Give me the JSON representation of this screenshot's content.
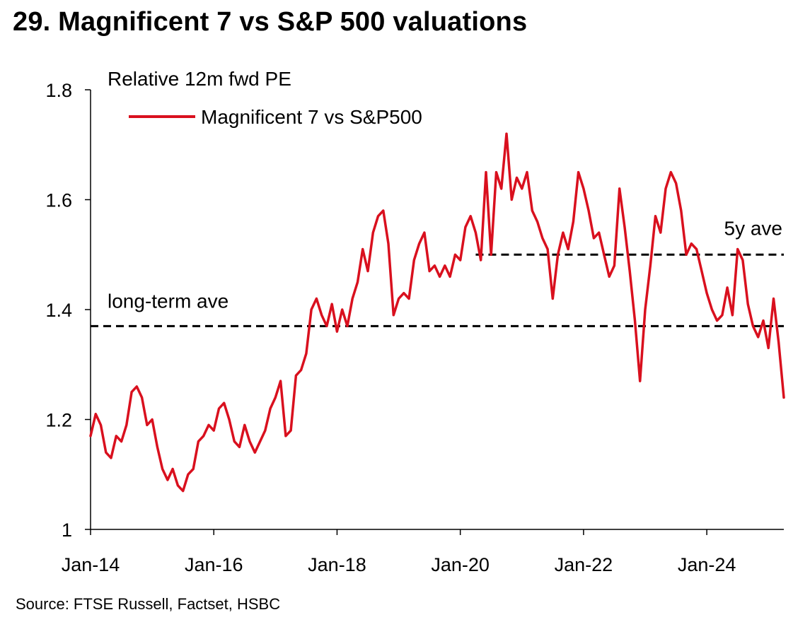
{
  "title": "29. Magnificent 7 vs S&P 500 valuations",
  "source": "Source: FTSE Russell, Factset, HSBC",
  "colors": {
    "series": "#d9101e",
    "reference": "#000000",
    "axis": "#000000"
  },
  "chart_data": {
    "type": "line",
    "subtitle": "Relative 12m fwd PE",
    "ylim": [
      1.0,
      1.8
    ],
    "yticks": [
      1.0,
      1.2,
      1.4,
      1.6,
      1.8
    ],
    "ytick_labels": [
      "1",
      "1.2",
      "1.4",
      "1.6",
      "1.8"
    ],
    "xlim": [
      "2014-01",
      "2025-04"
    ],
    "xticks": [
      "2014-01",
      "2016-01",
      "2018-01",
      "2020-01",
      "2022-01",
      "2024-01"
    ],
    "xtick_labels": [
      "Jan-14",
      "Jan-16",
      "Jan-18",
      "Jan-20",
      "Jan-22",
      "Jan-24"
    ],
    "legend_position": "top-left",
    "grid": false,
    "series": [
      {
        "name": "Magnificent 7 vs S&P500",
        "x": [
          "2014-01",
          "2014-02",
          "2014-03",
          "2014-04",
          "2014-05",
          "2014-06",
          "2014-07",
          "2014-08",
          "2014-09",
          "2014-10",
          "2014-11",
          "2014-12",
          "2015-01",
          "2015-02",
          "2015-03",
          "2015-04",
          "2015-05",
          "2015-06",
          "2015-07",
          "2015-08",
          "2015-09",
          "2015-10",
          "2015-11",
          "2015-12",
          "2016-01",
          "2016-02",
          "2016-03",
          "2016-04",
          "2016-05",
          "2016-06",
          "2016-07",
          "2016-08",
          "2016-09",
          "2016-10",
          "2016-11",
          "2016-12",
          "2017-01",
          "2017-02",
          "2017-03",
          "2017-04",
          "2017-05",
          "2017-06",
          "2017-07",
          "2017-08",
          "2017-09",
          "2017-10",
          "2017-11",
          "2017-12",
          "2018-01",
          "2018-02",
          "2018-03",
          "2018-04",
          "2018-05",
          "2018-06",
          "2018-07",
          "2018-08",
          "2018-09",
          "2018-10",
          "2018-11",
          "2018-12",
          "2019-01",
          "2019-02",
          "2019-03",
          "2019-04",
          "2019-05",
          "2019-06",
          "2019-07",
          "2019-08",
          "2019-09",
          "2019-10",
          "2019-11",
          "2019-12",
          "2020-01",
          "2020-02",
          "2020-03",
          "2020-04",
          "2020-05",
          "2020-06",
          "2020-07",
          "2020-08",
          "2020-09",
          "2020-10",
          "2020-11",
          "2020-12",
          "2021-01",
          "2021-02",
          "2021-03",
          "2021-04",
          "2021-05",
          "2021-06",
          "2021-07",
          "2021-08",
          "2021-09",
          "2021-10",
          "2021-11",
          "2021-12",
          "2022-01",
          "2022-02",
          "2022-03",
          "2022-04",
          "2022-05",
          "2022-06",
          "2022-07",
          "2022-08",
          "2022-09",
          "2022-10",
          "2022-11",
          "2022-12",
          "2023-01",
          "2023-02",
          "2023-03",
          "2023-04",
          "2023-05",
          "2023-06",
          "2023-07",
          "2023-08",
          "2023-09",
          "2023-10",
          "2023-11",
          "2023-12",
          "2024-01",
          "2024-02",
          "2024-03",
          "2024-04",
          "2024-05",
          "2024-06",
          "2024-07",
          "2024-08",
          "2024-09",
          "2024-10",
          "2024-11",
          "2024-12",
          "2025-01",
          "2025-02",
          "2025-03",
          "2025-04"
        ],
        "values": [
          1.17,
          1.21,
          1.19,
          1.14,
          1.13,
          1.17,
          1.16,
          1.19,
          1.25,
          1.26,
          1.24,
          1.19,
          1.2,
          1.15,
          1.11,
          1.09,
          1.11,
          1.08,
          1.07,
          1.1,
          1.11,
          1.16,
          1.17,
          1.19,
          1.18,
          1.22,
          1.23,
          1.2,
          1.16,
          1.15,
          1.19,
          1.16,
          1.14,
          1.16,
          1.18,
          1.22,
          1.24,
          1.27,
          1.17,
          1.18,
          1.28,
          1.29,
          1.32,
          1.4,
          1.42,
          1.39,
          1.37,
          1.41,
          1.36,
          1.4,
          1.37,
          1.42,
          1.45,
          1.51,
          1.47,
          1.54,
          1.57,
          1.58,
          1.52,
          1.39,
          1.42,
          1.43,
          1.42,
          1.49,
          1.52,
          1.54,
          1.47,
          1.48,
          1.46,
          1.48,
          1.46,
          1.5,
          1.49,
          1.55,
          1.57,
          1.54,
          1.49,
          1.65,
          1.5,
          1.65,
          1.62,
          1.72,
          1.6,
          1.64,
          1.62,
          1.65,
          1.58,
          1.56,
          1.53,
          1.51,
          1.42,
          1.5,
          1.54,
          1.51,
          1.56,
          1.65,
          1.62,
          1.58,
          1.53,
          1.54,
          1.5,
          1.46,
          1.48,
          1.62,
          1.55,
          1.47,
          1.38,
          1.27,
          1.4,
          1.48,
          1.57,
          1.54,
          1.62,
          1.65,
          1.63,
          1.58,
          1.5,
          1.52,
          1.51,
          1.47,
          1.43,
          1.4,
          1.38,
          1.39,
          1.44,
          1.39,
          1.51,
          1.49,
          1.41,
          1.37,
          1.35,
          1.38,
          1.33,
          1.42,
          1.34,
          1.24
        ]
      }
    ],
    "reference_lines": [
      {
        "label": "long-term ave",
        "value": 1.37,
        "from": "2014-01",
        "to": "2025-04"
      },
      {
        "label": "5y ave",
        "value": 1.5,
        "from": "2020-04",
        "to": "2025-04"
      }
    ]
  }
}
